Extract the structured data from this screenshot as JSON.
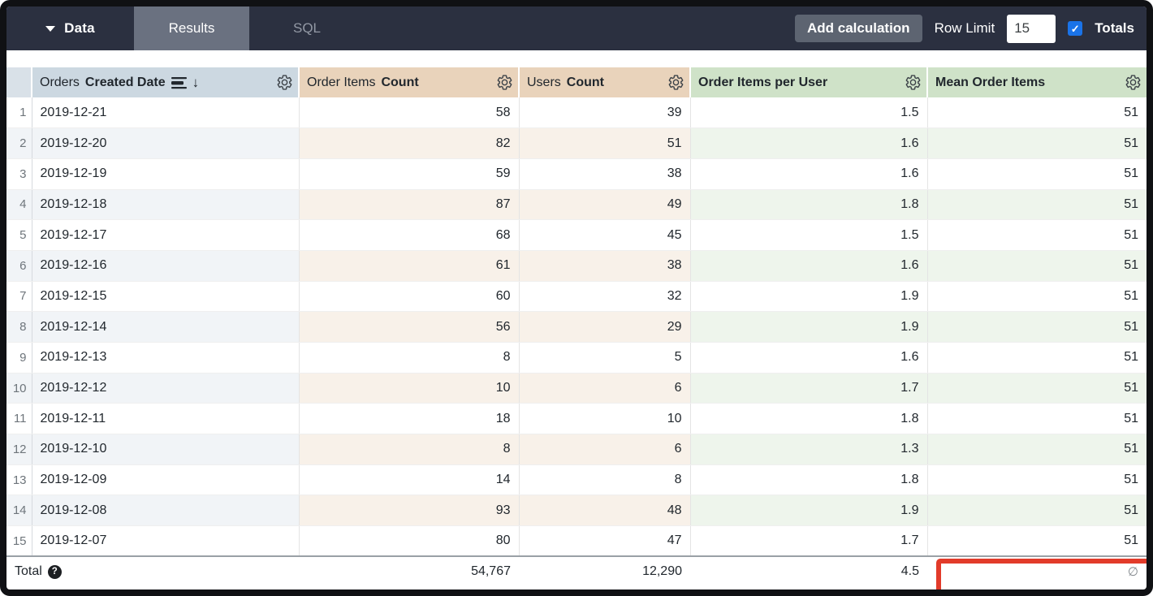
{
  "topbar": {
    "data_label": "Data",
    "tabs": [
      {
        "label": "Results",
        "active": true
      },
      {
        "label": "SQL",
        "active": false
      }
    ],
    "add_calculation_label": "Add calculation",
    "row_limit_label": "Row Limit",
    "row_limit_value": "15",
    "totals_label": "Totals",
    "totals_checked": true
  },
  "icons": {
    "check": "✓",
    "arrow_down": "↓",
    "help": "?"
  },
  "colors": {
    "topbar_bg": "#2b3040",
    "active_tab_bg": "#6a7180",
    "dimension_header_bg": "#ccd8e1",
    "measure_header_bg": "#e9d3bb",
    "calculation_header_bg": "#cfe2c8",
    "checkbox_blue": "#1a73e8",
    "annotation_red": "#e23b2a"
  },
  "table": {
    "columns": [
      {
        "view": "Orders",
        "field": "Created Date",
        "type": "dimension",
        "sorted_desc": true
      },
      {
        "view": "Order Items",
        "field": "Count",
        "type": "measure"
      },
      {
        "view": "Users",
        "field": "Count",
        "type": "measure"
      },
      {
        "view": "",
        "field": "Order Items per User",
        "type": "table_calculation"
      },
      {
        "view": "",
        "field": "Mean Order Items",
        "type": "table_calculation"
      }
    ],
    "rows": [
      {
        "row_number": "1",
        "date": "2019-12-21",
        "order_items_count": "58",
        "users_count": "39",
        "order_items_per_user": "1.5",
        "mean_order_items": "51"
      },
      {
        "row_number": "2",
        "date": "2019-12-20",
        "order_items_count": "82",
        "users_count": "51",
        "order_items_per_user": "1.6",
        "mean_order_items": "51"
      },
      {
        "row_number": "3",
        "date": "2019-12-19",
        "order_items_count": "59",
        "users_count": "38",
        "order_items_per_user": "1.6",
        "mean_order_items": "51"
      },
      {
        "row_number": "4",
        "date": "2019-12-18",
        "order_items_count": "87",
        "users_count": "49",
        "order_items_per_user": "1.8",
        "mean_order_items": "51"
      },
      {
        "row_number": "5",
        "date": "2019-12-17",
        "order_items_count": "68",
        "users_count": "45",
        "order_items_per_user": "1.5",
        "mean_order_items": "51"
      },
      {
        "row_number": "6",
        "date": "2019-12-16",
        "order_items_count": "61",
        "users_count": "38",
        "order_items_per_user": "1.6",
        "mean_order_items": "51"
      },
      {
        "row_number": "7",
        "date": "2019-12-15",
        "order_items_count": "60",
        "users_count": "32",
        "order_items_per_user": "1.9",
        "mean_order_items": "51"
      },
      {
        "row_number": "8",
        "date": "2019-12-14",
        "order_items_count": "56",
        "users_count": "29",
        "order_items_per_user": "1.9",
        "mean_order_items": "51"
      },
      {
        "row_number": "9",
        "date": "2019-12-13",
        "order_items_count": "8",
        "users_count": "5",
        "order_items_per_user": "1.6",
        "mean_order_items": "51"
      },
      {
        "row_number": "10",
        "date": "2019-12-12",
        "order_items_count": "10",
        "users_count": "6",
        "order_items_per_user": "1.7",
        "mean_order_items": "51"
      },
      {
        "row_number": "11",
        "date": "2019-12-11",
        "order_items_count": "18",
        "users_count": "10",
        "order_items_per_user": "1.8",
        "mean_order_items": "51"
      },
      {
        "row_number": "12",
        "date": "2019-12-10",
        "order_items_count": "8",
        "users_count": "6",
        "order_items_per_user": "1.3",
        "mean_order_items": "51"
      },
      {
        "row_number": "13",
        "date": "2019-12-09",
        "order_items_count": "14",
        "users_count": "8",
        "order_items_per_user": "1.8",
        "mean_order_items": "51"
      },
      {
        "row_number": "14",
        "date": "2019-12-08",
        "order_items_count": "93",
        "users_count": "48",
        "order_items_per_user": "1.9",
        "mean_order_items": "51"
      },
      {
        "row_number": "15",
        "date": "2019-12-07",
        "order_items_count": "80",
        "users_count": "47",
        "order_items_per_user": "1.7",
        "mean_order_items": "51"
      }
    ],
    "total": {
      "label": "Total",
      "order_items_count": "54,767",
      "users_count": "12,290",
      "order_items_per_user": "4.5",
      "mean_order_items": "∅"
    }
  }
}
